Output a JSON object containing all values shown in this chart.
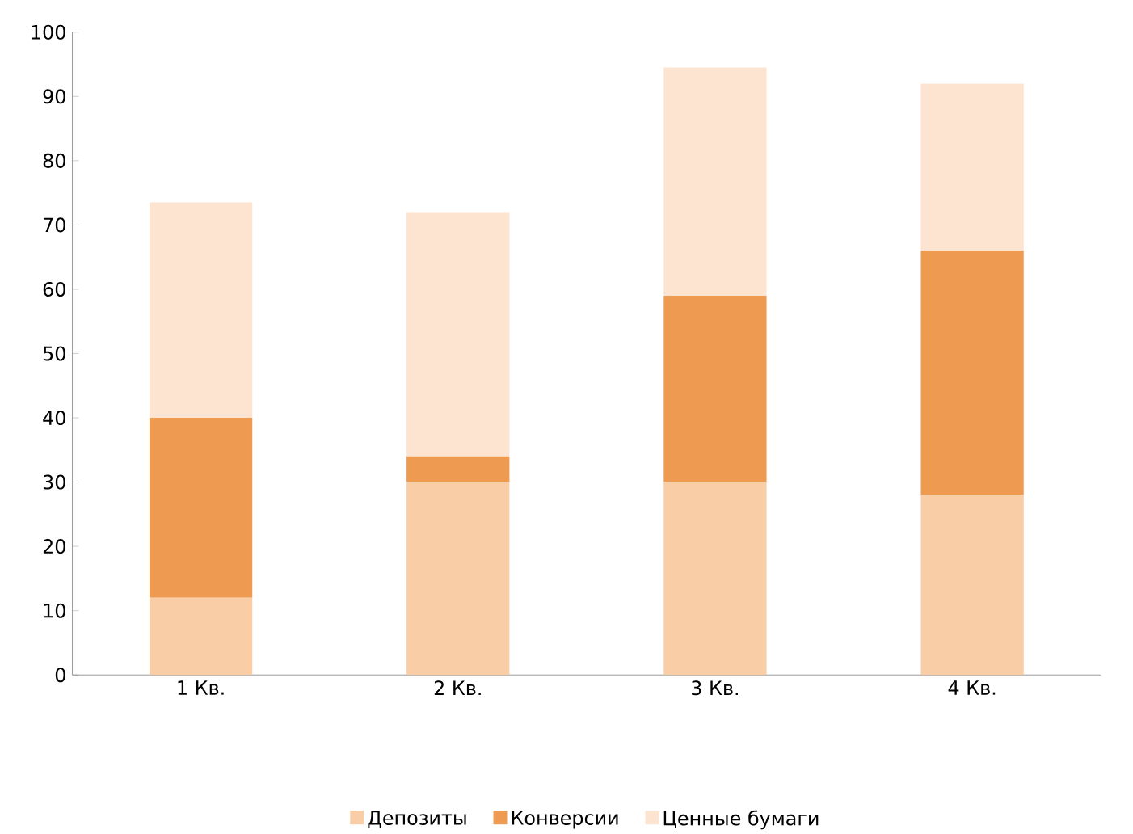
{
  "chart_data": {
    "type": "bar",
    "stacked": true,
    "categories": [
      "1 Кв.",
      "2 Кв.",
      "3 Кв.",
      "4 Кв."
    ],
    "series": [
      {
        "name": "Депозиты",
        "color": "#f9cea6",
        "values": [
          12,
          30,
          30,
          28
        ]
      },
      {
        "name": "Конверсии",
        "color": "#ee9a50",
        "values": [
          28,
          4,
          29,
          38
        ]
      },
      {
        "name": "Ценные бумаги",
        "color": "#fde4d1",
        "values": [
          33.5,
          38,
          35.5,
          26
        ]
      }
    ],
    "ylim": [
      0,
      100
    ],
    "yticks": [
      0,
      10,
      20,
      30,
      40,
      50,
      60,
      70,
      80,
      90,
      100
    ],
    "grid": false,
    "legend": "bottom"
  }
}
